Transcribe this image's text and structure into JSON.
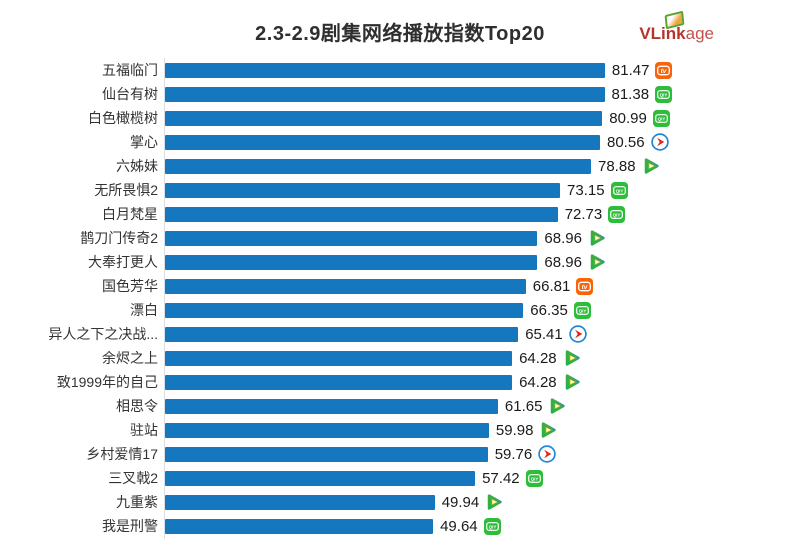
{
  "title": "2.3-2.9剧集网络播放指数Top20",
  "logo": {
    "bold": "VLink",
    "light": "age"
  },
  "chart_data": {
    "type": "bar",
    "orientation": "horizontal",
    "title": "2.3-2.9剧集网络播放指数Top20",
    "xlabel": "",
    "ylabel": "",
    "xlim": [
      0,
      88
    ],
    "grid": false,
    "legend_position": "none",
    "bar_color": "#1577bd",
    "value_label_position": "end-of-bar",
    "categories": [
      "五福临门",
      "仙台有树",
      "白色橄榄树",
      "掌心",
      "六姊妹",
      "无所畏惧2",
      "白月梵星",
      "鹊刀门传奇2",
      "大奉打更人",
      "国色芳华",
      "漂白",
      "异人之下之决战...",
      "余烬之上",
      "致1999年的自己",
      "相思令",
      "驻站",
      "乡村爱情17",
      "三叉戟2",
      "九重紫",
      "我是刑警"
    ],
    "values": [
      81.47,
      81.38,
      80.99,
      80.56,
      78.88,
      73.15,
      72.73,
      68.96,
      68.96,
      66.81,
      66.35,
      65.41,
      64.28,
      64.28,
      61.65,
      59.98,
      59.76,
      57.42,
      49.94,
      49.64
    ],
    "platform_icons": [
      "mgtv-icon",
      "iqiyi-icon",
      "iqiyi-icon",
      "youku-icon",
      "tencent-video-icon",
      "iqiyi-icon",
      "iqiyi-icon",
      "tencent-video-icon",
      "tencent-video-icon",
      "mgtv-icon",
      "iqiyi-icon",
      "youku-icon",
      "tencent-video-icon",
      "tencent-video-icon",
      "tencent-video-icon",
      "tencent-video-icon",
      "youku-icon",
      "iqiyi-icon",
      "tencent-video-icon",
      "iqiyi-icon"
    ],
    "platform_colors": {
      "mgtv": "#f7640a",
      "iqiyi": "#2ebd3b",
      "youku_ring": "#1f86d8",
      "youku_arrow": "#e0251b",
      "tencent_green": "#27b148",
      "tencent_blue": "#2f7de2",
      "tencent_yellow": "#ffd94d"
    }
  }
}
